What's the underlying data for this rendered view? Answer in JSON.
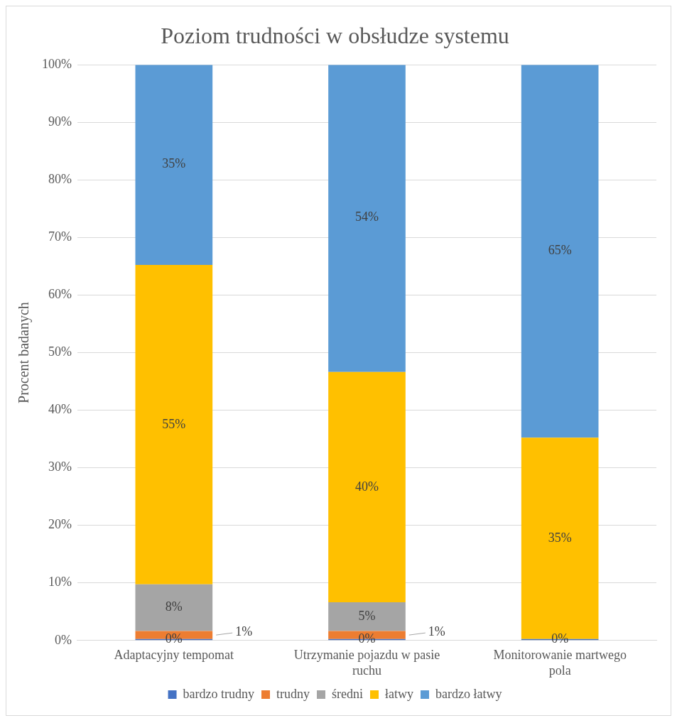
{
  "chart_data": {
    "type": "bar",
    "title": "Poziom trudności w obsłudze systemu",
    "ylabel": "Procent badanych",
    "stacked": true,
    "categories": [
      "Adaptacyjny tempomat",
      "Utrzymanie pojazdu w pasie ruchu",
      "Monitorowanie martwego pola"
    ],
    "series": [
      {
        "name": "bardzo trudny",
        "color": "#4472c4",
        "values": [
          0,
          0,
          0
        ],
        "value_labels": [
          "0%",
          "0%",
          "0%"
        ]
      },
      {
        "name": "trudny",
        "color": "#ed7d31",
        "values": [
          1.4,
          1.4,
          0
        ],
        "value_labels": [
          "1%",
          "1%",
          null
        ]
      },
      {
        "name": "średni",
        "color": "#a5a5a5",
        "values": [
          8.1,
          5,
          0
        ],
        "value_labels": [
          "8%",
          "5%",
          null
        ]
      },
      {
        "name": "łatwy",
        "color": "#ffc000",
        "values": [
          55.5,
          40,
          35
        ],
        "value_labels": [
          "55%",
          "40%",
          "35%"
        ]
      },
      {
        "name": "bardzo łatwy",
        "color": "#5b9bd5",
        "values": [
          35,
          53.6,
          65
        ],
        "value_labels": [
          "35%",
          "54%",
          "65%"
        ]
      }
    ],
    "ylim": [
      0,
      100
    ],
    "yticks": [
      {
        "value": 0,
        "label": "0%"
      },
      {
        "value": 10,
        "label": "10%"
      },
      {
        "value": 20,
        "label": "20%"
      },
      {
        "value": 30,
        "label": "30%"
      },
      {
        "value": 40,
        "label": "40%"
      },
      {
        "value": 50,
        "label": "50%"
      },
      {
        "value": 60,
        "label": "60%"
      },
      {
        "value": 70,
        "label": "70%"
      },
      {
        "value": 80,
        "label": "80%"
      },
      {
        "value": 90,
        "label": "90%"
      },
      {
        "value": 100,
        "label": "100%"
      }
    ],
    "grid": "y",
    "legend": "bottom"
  }
}
